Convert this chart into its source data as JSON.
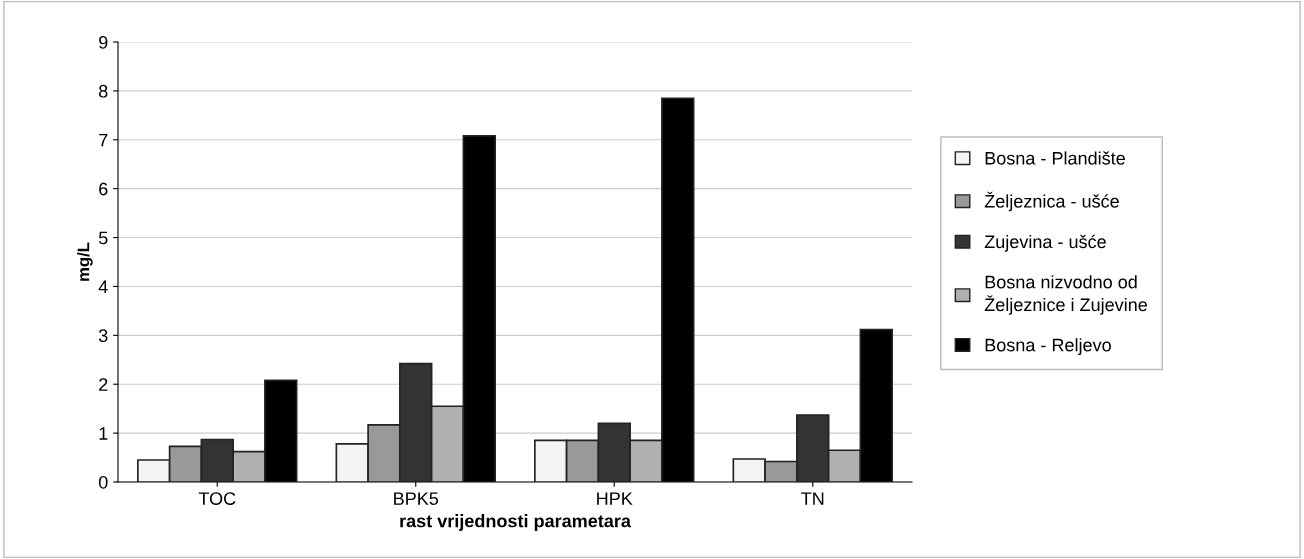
{
  "chart_data": {
    "type": "bar",
    "xlabel": "rast vrijednosti parametara",
    "ylabel": "mg/L",
    "categories": [
      "TOC",
      "BPK5",
      "HPK",
      "TN"
    ],
    "series": [
      {
        "name": "Bosna - Plandište",
        "color": "#f4f4f4",
        "values": [
          0.45,
          0.78,
          0.85,
          0.47
        ]
      },
      {
        "name": "Željeznica - ušće",
        "color": "#999999",
        "values": [
          0.73,
          1.17,
          0.85,
          0.42
        ]
      },
      {
        "name": "Zujevina - ušće",
        "color": "#333333",
        "values": [
          0.87,
          2.42,
          1.2,
          1.37
        ]
      },
      {
        "name": "Bosna nizvodno od\nŽeljeznice i Zujevine",
        "color": "#b0b0b0",
        "values": [
          0.62,
          1.55,
          0.85,
          0.65
        ]
      },
      {
        "name": "Bosna - Reljevo",
        "color": "#000000",
        "values": [
          2.08,
          7.08,
          7.85,
          3.12
        ]
      }
    ],
    "ylim": [
      0,
      9
    ],
    "yticks": [
      0,
      1,
      2,
      3,
      4,
      5,
      6,
      7,
      8,
      9
    ],
    "grid": "y",
    "legend": "right"
  }
}
